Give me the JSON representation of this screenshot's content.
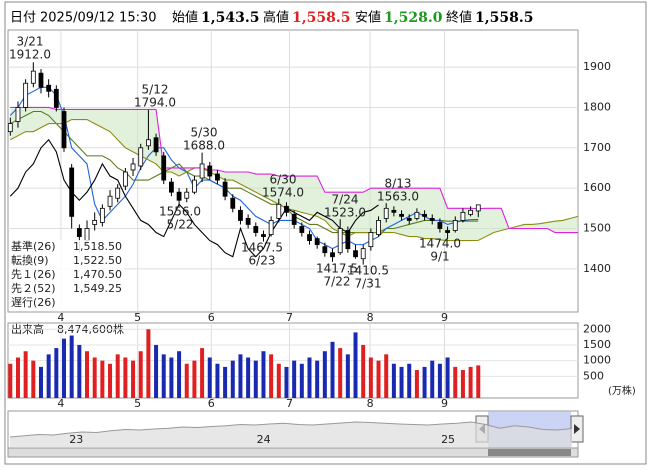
{
  "header": {
    "date_label": "日付",
    "date": "2025/09/12 15:30",
    "open_label": "始値",
    "open": "1,543.5",
    "high_label": "高値",
    "high": "1,558.5",
    "low_label": "安値",
    "low": "1,528.0",
    "close_label": "終値",
    "close": "1,558.5"
  },
  "chart_data": {
    "type": "candlestick",
    "xlim": [
      -0.3,
      74
    ],
    "xticks": [
      {
        "value": 6.6,
        "label": "4"
      },
      {
        "value": 16.6,
        "label": "5"
      },
      {
        "value": 26.2,
        "label": "6"
      },
      {
        "value": 36.4,
        "label": "7"
      },
      {
        "value": 46.9,
        "label": "8"
      },
      {
        "value": 56.6,
        "label": "9"
      }
    ],
    "ylim": [
      1293,
      1992
    ],
    "yticks": [
      1400,
      1500,
      1600,
      1700,
      1800,
      1900
    ],
    "grid": true,
    "up_color": "#ffffff",
    "down_color": "#000000",
    "open": [
      1740,
      1765,
      1800,
      1860,
      1885,
      1855,
      1845,
      1790,
      1650,
      1500,
      1470,
      1510,
      1515,
      1555,
      1575,
      1605,
      1645,
      1655,
      1705,
      1725,
      1680,
      1615,
      1590,
      1575,
      1590,
      1625,
      1655,
      1635,
      1615,
      1575,
      1545,
      1525,
      1505,
      1485,
      1485,
      1525,
      1555,
      1535,
      1505,
      1485,
      1475,
      1455,
      1440,
      1440,
      1495,
      1445,
      1425,
      1455,
      1485,
      1525,
      1545,
      1535,
      1525,
      1525,
      1535,
      1525,
      1515,
      1495,
      1495,
      1520,
      1535,
      1543.5
    ],
    "high": [
      1775,
      1815,
      1870,
      1912,
      1895,
      1870,
      1855,
      1800,
      1660,
      1510,
      1520,
      1540,
      1560,
      1595,
      1610,
      1650,
      1675,
      1710,
      1794,
      1735,
      1690,
      1625,
      1600,
      1600,
      1630,
      1688,
      1665,
      1645,
      1625,
      1585,
      1555,
      1535,
      1515,
      1495,
      1530,
      1574,
      1565,
      1545,
      1515,
      1495,
      1480,
      1465,
      1450,
      1523,
      1505,
      1460,
      1460,
      1500,
      1530,
      1563,
      1555,
      1545,
      1535,
      1550,
      1545,
      1535,
      1525,
      1505,
      1530,
      1550,
      1555,
      1558.5
    ],
    "low": [
      1730,
      1750,
      1790,
      1850,
      1835,
      1825,
      1790,
      1690,
      1500,
      1440,
      1460,
      1495,
      1505,
      1545,
      1565,
      1595,
      1630,
      1645,
      1695,
      1680,
      1610,
      1580,
      1556,
      1565,
      1585,
      1615,
      1620,
      1610,
      1570,
      1540,
      1510,
      1500,
      1480,
      1467.5,
      1480,
      1515,
      1530,
      1500,
      1480,
      1460,
      1450,
      1430,
      1417.5,
      1435,
      1440,
      1425,
      1410.5,
      1445,
      1480,
      1515,
      1530,
      1520,
      1510,
      1520,
      1520,
      1510,
      1490,
      1474,
      1490,
      1515,
      1530,
      1528
    ],
    "close": [
      1760,
      1800,
      1860,
      1890,
      1850,
      1840,
      1800,
      1700,
      1530,
      1480,
      1500,
      1520,
      1550,
      1580,
      1600,
      1640,
      1660,
      1700,
      1720,
      1690,
      1620,
      1590,
      1570,
      1590,
      1620,
      1660,
      1630,
      1620,
      1580,
      1550,
      1520,
      1510,
      1490,
      1480,
      1520,
      1560,
      1540,
      1510,
      1490,
      1470,
      1460,
      1440,
      1430,
      1500,
      1450,
      1430,
      1450,
      1490,
      1520,
      1550,
      1540,
      1530,
      1520,
      1540,
      1530,
      1520,
      1500,
      1490,
      1520,
      1540,
      1545,
      1558.5
    ],
    "series": [
      {
        "name": "基準(26)",
        "color": "#5a7a1e",
        "last_label": "1,518.50",
        "values": [
          1760,
          1770,
          1780,
          1790,
          1790,
          1780,
          1760,
          1740,
          1720,
          1700,
          1680,
          1680,
          1680,
          1670,
          1650,
          1640,
          1620,
          1620,
          1620,
          1630,
          1640,
          1650,
          1660,
          1640,
          1630,
          1630,
          1620,
          1610,
          1600,
          1600,
          1600,
          1590,
          1580,
          1570,
          1560,
          1560,
          1550,
          1530,
          1520,
          1510,
          1510,
          1500,
          1490,
          1490,
          1490,
          1490,
          1490,
          1490,
          1490,
          1500,
          1500,
          1505,
          1510,
          1515,
          1520,
          1520,
          1520,
          1518,
          1518,
          1518,
          1518.5,
          1518.5
        ]
      },
      {
        "name": "転換(9)",
        "color": "#1e64dc",
        "last_label": "1,522.50",
        "values": [
          1780,
          1800,
          1830,
          1840,
          1850,
          1850,
          1830,
          1780,
          1700,
          1680,
          1660,
          1560,
          1520,
          1540,
          1560,
          1580,
          1610,
          1650,
          1680,
          1700,
          1700,
          1670,
          1650,
          1640,
          1600,
          1620,
          1620,
          1610,
          1600,
          1580,
          1570,
          1550,
          1530,
          1520,
          1510,
          1520,
          1520,
          1520,
          1510,
          1500,
          1470,
          1460,
          1450,
          1460,
          1470,
          1460,
          1460,
          1470,
          1480,
          1500,
          1510,
          1520,
          1530,
          1540,
          1530,
          1520,
          1520,
          1510,
          1515,
          1520,
          1522,
          1522.5
        ]
      },
      {
        "name": "先１(26)",
        "color": "#8c8c14",
        "last_label": "1,470.50",
        "values": [
          1720,
          1730,
          1740,
          1740,
          1750,
          1760,
          1760,
          1760,
          1770,
          1770,
          1770,
          1760,
          1750,
          1740,
          1720,
          1700,
          1690,
          1680,
          1670,
          1660,
          1640,
          1640,
          1630,
          1640,
          1650,
          1650,
          1640,
          1630,
          1620,
          1620,
          1610,
          1600,
          1590,
          1580,
          1570,
          1560,
          1550,
          1545,
          1540,
          1535,
          1530,
          1520,
          1500,
          1490,
          1480,
          1490,
          1490,
          1490,
          1490,
          1490,
          1490,
          1485,
          1480,
          1480,
          1475,
          1475,
          1472,
          1470,
          1470,
          1470,
          1470,
          1470.5,
          1480,
          1490,
          1495,
          1500,
          1505,
          1510,
          1510,
          1512,
          1515,
          1518,
          1520,
          1525,
          1530
        ]
      },
      {
        "name": "先２(52)",
        "color": "#e020e0",
        "last_label": "1,549.25",
        "values": [
          1800,
          1800,
          1800,
          1800,
          1800,
          1800,
          1795,
          1795,
          1795,
          1795,
          1795,
          1795,
          1795,
          1795,
          1795,
          1795,
          1795,
          1795,
          1795,
          1795,
          1650,
          1650,
          1650,
          1650,
          1650,
          1650,
          1645,
          1645,
          1640,
          1640,
          1640,
          1640,
          1635,
          1635,
          1635,
          1630,
          1630,
          1630,
          1630,
          1630,
          1630,
          1590,
          1590,
          1590,
          1590,
          1590,
          1590,
          1600,
          1600,
          1600,
          1600,
          1600,
          1600,
          1600,
          1600,
          1600,
          1600,
          1550,
          1550,
          1550,
          1550,
          1549.25,
          1550,
          1550,
          1550,
          1500,
          1500,
          1500,
          1500,
          1500,
          1500,
          1490,
          1490,
          1490,
          1490
        ]
      },
      {
        "name": "遅行(26)",
        "color": "#000000",
        "values": [
          1580,
          1600,
          1640,
          1660,
          1700,
          1720,
          1690,
          1620,
          1590,
          1570,
          1590,
          1620,
          1660,
          1630,
          1620,
          1580,
          1550,
          1520,
          1510,
          1490,
          1480,
          1520,
          1560,
          1540,
          1510,
          1490,
          1470,
          1460,
          1440,
          1430,
          1500,
          1450,
          1430,
          1450,
          1490,
          1520,
          1550,
          1540,
          1530,
          1520,
          1540,
          1530,
          1520,
          1500,
          1490,
          1520,
          1540,
          1545,
          1558.5
        ]
      }
    ],
    "annotations": [
      {
        "date": "3/21",
        "value": "1912.0"
      },
      {
        "date": "5/12",
        "value": "1794.0"
      },
      {
        "date": "5/30",
        "value": "1688.0"
      },
      {
        "date": "6/30",
        "value": "1574.0"
      },
      {
        "date": "8/13",
        "value": "1563.0"
      },
      {
        "date": "7/24",
        "value": "1523.0"
      },
      {
        "date": "5/22",
        "value": "1556.0"
      },
      {
        "date": "6/23",
        "value": "1467.5"
      },
      {
        "date": "7/22",
        "value": "1417.5"
      },
      {
        "date": "7/31",
        "value": "1410.5"
      },
      {
        "date": "9/1",
        "value": "1474.0"
      }
    ],
    "volume": {
      "title": "出来高",
      "title_value": "8,474,600株",
      "unit": "(万株)",
      "ylim": [
        0,
        2200
      ],
      "yticks": [
        500,
        1000,
        1500,
        2000
      ],
      "up_color": "#e02020",
      "down_color": "#1a2ab0",
      "values": [
        900,
        1100,
        1300,
        1000,
        800,
        1200,
        1400,
        1700,
        1800,
        1500,
        1300,
        1100,
        1000,
        900,
        1200,
        1100,
        1000,
        1300,
        2000,
        1500,
        1200,
        1100,
        1300,
        900,
        1000,
        1400,
        1100,
        900,
        800,
        1000,
        1200,
        1100,
        1000,
        1300,
        1200,
        900,
        800,
        1000,
        900,
        1100,
        1000,
        1300,
        1600,
        1400,
        1200,
        1900,
        1500,
        1100,
        1000,
        1200,
        900,
        800,
        900,
        700,
        800,
        1000,
        900,
        1100,
        800,
        700,
        800,
        847.46
      ]
    },
    "navigator": {
      "xlim": [
        0,
        39
      ],
      "ylim": [
        800,
        2200
      ],
      "xticks": [
        {
          "value": 4.6,
          "label": "23"
        },
        {
          "value": 17.6,
          "label": "24"
        },
        {
          "value": 30.4,
          "label": "25"
        }
      ],
      "values": [
        1200,
        1250,
        1300,
        1280,
        1350,
        1400,
        1380,
        1450,
        1500,
        1480,
        1520,
        1550,
        1600,
        1580,
        1620,
        1650,
        1700,
        1680,
        1720,
        1750,
        1700,
        1680,
        1720,
        1760,
        1800,
        1780,
        1750,
        1720,
        1700,
        1680,
        1720,
        1750,
        1800,
        1700,
        1550,
        1650,
        1600,
        1500,
        1480,
        1540
      ]
    }
  }
}
